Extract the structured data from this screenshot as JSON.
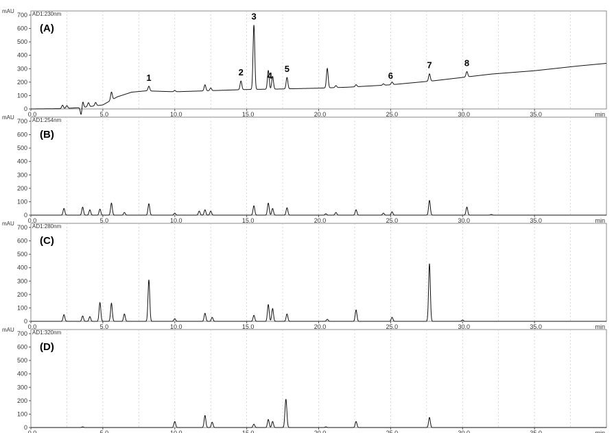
{
  "chart_data": {
    "type": "line",
    "x_unit": "min",
    "y_unit": "mAU",
    "xlim": [
      0,
      40
    ],
    "ylim": [
      0,
      700
    ],
    "x_ticks": [
      0,
      5,
      10,
      15,
      20,
      25,
      30,
      35
    ],
    "x_tick_labels": [
      "0.0",
      "5.0",
      "10.0",
      "15.0",
      "20.0",
      "25.0",
      "30.0",
      "35.0"
    ],
    "y_ticks": [
      0,
      100,
      200,
      300,
      400,
      500,
      600,
      700
    ],
    "grid": true,
    "panels": [
      {
        "label": "(A)",
        "channel": "AD1:230nm",
        "baseline": [
          [
            0,
            0
          ],
          [
            2,
            2
          ],
          [
            3.5,
            10
          ],
          [
            5,
            30
          ],
          [
            6,
            90
          ],
          [
            7,
            125
          ],
          [
            8,
            135
          ],
          [
            10,
            128
          ],
          [
            13,
            138
          ],
          [
            15,
            145
          ],
          [
            17,
            148
          ],
          [
            20,
            155
          ],
          [
            22,
            162
          ],
          [
            25,
            180
          ],
          [
            28,
            210
          ],
          [
            30,
            235
          ],
          [
            32,
            260
          ],
          [
            35,
            285
          ],
          [
            38,
            320
          ],
          [
            40,
            340
          ]
        ],
        "peaks": [
          [
            2.2,
            25
          ],
          [
            2.5,
            20
          ],
          [
            3.6,
            50
          ],
          [
            3.5,
            -60
          ],
          [
            4.0,
            30
          ],
          [
            4.5,
            25
          ],
          [
            5.6,
            60
          ],
          [
            8.2,
            35
          ],
          [
            10.0,
            10
          ],
          [
            12.1,
            45
          ],
          [
            12.5,
            20
          ],
          [
            14.6,
            65
          ],
          [
            15.5,
            480
          ],
          [
            16.5,
            140
          ],
          [
            16.8,
            95
          ],
          [
            17.8,
            85
          ],
          [
            20.6,
            145
          ],
          [
            21.2,
            15
          ],
          [
            22.6,
            15
          ],
          [
            24.5,
            10
          ],
          [
            25.1,
            20
          ],
          [
            27.7,
            55
          ],
          [
            30.3,
            40
          ]
        ],
        "peak_labels": [
          {
            "text": "1",
            "x": 8.2
          },
          {
            "text": "2",
            "x": 14.6
          },
          {
            "text": "3",
            "x": 15.5
          },
          {
            "text": "4",
            "x": 16.6
          },
          {
            "text": "5",
            "x": 17.8
          },
          {
            "text": "6",
            "x": 25.0
          },
          {
            "text": "7",
            "x": 27.7
          },
          {
            "text": "8",
            "x": 30.3
          }
        ]
      },
      {
        "label": "(B)",
        "channel": "AD1:254nm",
        "baseline": [
          [
            0,
            0
          ],
          [
            40,
            0
          ]
        ],
        "peaks": [
          [
            2.3,
            50
          ],
          [
            3.6,
            60
          ],
          [
            4.1,
            40
          ],
          [
            4.8,
            45
          ],
          [
            5.6,
            90
          ],
          [
            6.5,
            20
          ],
          [
            8.2,
            85
          ],
          [
            10.0,
            15
          ],
          [
            11.7,
            30
          ],
          [
            12.1,
            40
          ],
          [
            12.5,
            30
          ],
          [
            15.5,
            70
          ],
          [
            16.5,
            90
          ],
          [
            16.8,
            50
          ],
          [
            17.8,
            55
          ],
          [
            20.5,
            10
          ],
          [
            21.2,
            20
          ],
          [
            22.6,
            40
          ],
          [
            24.5,
            15
          ],
          [
            25.1,
            25
          ],
          [
            27.7,
            110
          ],
          [
            30.3,
            60
          ],
          [
            32.0,
            5
          ]
        ],
        "peak_labels": []
      },
      {
        "label": "(C)",
        "channel": "AD1:280nm",
        "baseline": [
          [
            0,
            0
          ],
          [
            40,
            0
          ]
        ],
        "peaks": [
          [
            2.3,
            50
          ],
          [
            3.6,
            40
          ],
          [
            4.1,
            35
          ],
          [
            4.8,
            140
          ],
          [
            5.6,
            135
          ],
          [
            6.5,
            55
          ],
          [
            8.2,
            310
          ],
          [
            10.0,
            20
          ],
          [
            12.1,
            60
          ],
          [
            12.6,
            30
          ],
          [
            15.5,
            45
          ],
          [
            16.5,
            125
          ],
          [
            16.8,
            95
          ],
          [
            17.8,
            55
          ],
          [
            20.6,
            15
          ],
          [
            22.6,
            85
          ],
          [
            25.1,
            30
          ],
          [
            27.7,
            430
          ],
          [
            30.0,
            10
          ]
        ],
        "peak_labels": []
      },
      {
        "label": "(D)",
        "channel": "AD1:320nm",
        "baseline": [
          [
            0,
            0
          ],
          [
            40,
            0
          ]
        ],
        "peaks": [
          [
            3.6,
            5
          ],
          [
            10.0,
            45
          ],
          [
            12.1,
            90
          ],
          [
            12.6,
            40
          ],
          [
            15.5,
            25
          ],
          [
            16.5,
            60
          ],
          [
            16.8,
            45
          ],
          [
            17.7,
            120
          ],
          [
            17.75,
            110
          ],
          [
            20.5,
            5
          ],
          [
            22.6,
            45
          ],
          [
            27.7,
            75
          ]
        ],
        "peak_labels": []
      }
    ]
  }
}
